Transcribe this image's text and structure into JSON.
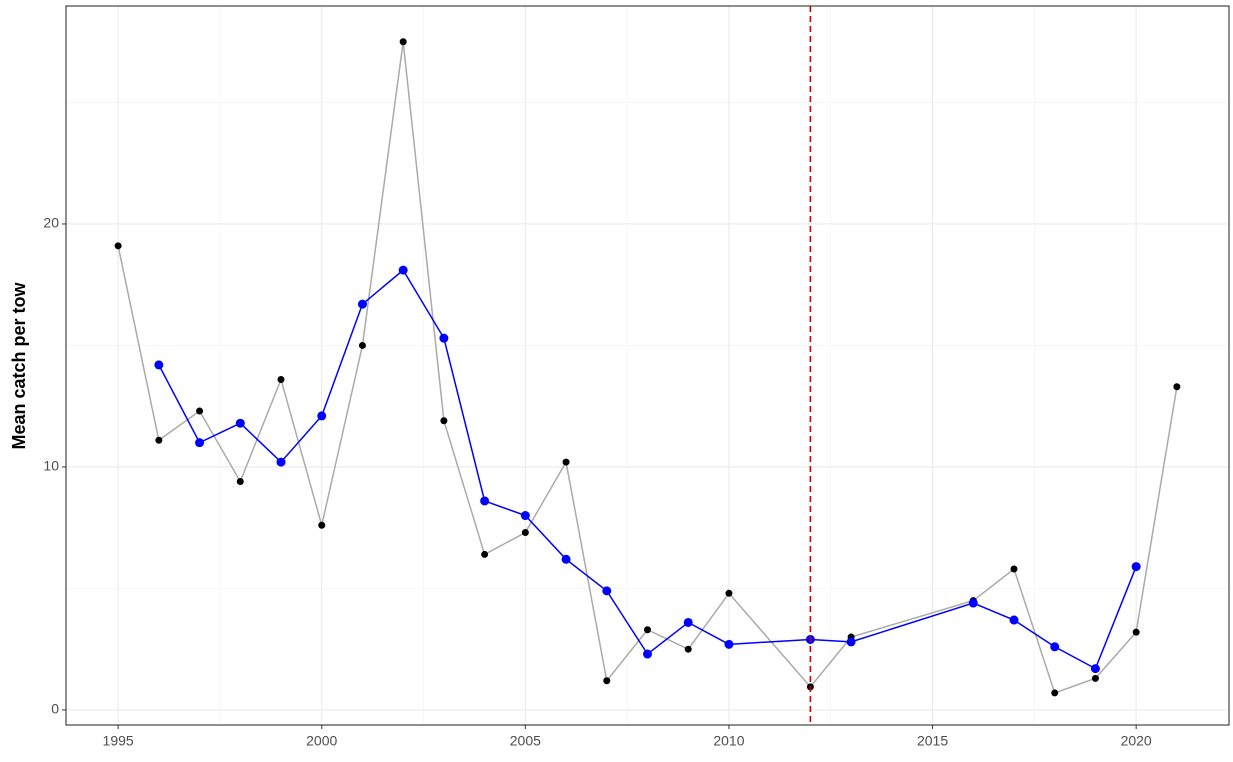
{
  "chart_data": {
    "type": "line",
    "y_label": "Mean catch per tow",
    "xlim": [
      1993.72,
      2022.28
    ],
    "ylim": [
      -0.62,
      28.97
    ],
    "xticks": [
      1995,
      2000,
      2005,
      2010,
      2015,
      2020
    ],
    "yticks": [
      0,
      10,
      20
    ],
    "minor_xticks": [
      1997.5,
      2002.5,
      2007.5,
      2012.5,
      2017.5
    ],
    "minor_yticks": [
      5,
      15,
      25
    ],
    "grid": true,
    "vline": {
      "x": 2012,
      "color": "#cc0000"
    },
    "series": [
      {
        "color": "#000000",
        "line_color": "#aaaaaa",
        "x": [
          1995,
          1996,
          1997,
          1998,
          1999,
          2000,
          2001,
          2002,
          2003,
          2004,
          2005,
          2006,
          2007,
          2008,
          2009,
          2010,
          2012,
          2013,
          2016,
          2017,
          2018,
          2019,
          2020,
          2021
        ],
        "values": [
          19.1,
          11.1,
          12.3,
          9.4,
          13.6,
          7.6,
          15.0,
          27.5,
          11.9,
          6.4,
          7.3,
          10.2,
          1.2,
          3.3,
          2.5,
          4.8,
          0.95,
          3.0,
          4.5,
          5.8,
          0.7,
          1.3,
          3.2,
          13.3
        ]
      },
      {
        "color": "#0000ff",
        "line_color": "#0000ff",
        "x": [
          1996,
          1997,
          1998,
          1999,
          2000,
          2001,
          2002,
          2003,
          2004,
          2005,
          2006,
          2007,
          2008,
          2009,
          2010,
          2012,
          2013,
          2016,
          2017,
          2018,
          2019,
          2020
        ],
        "values": [
          14.2,
          11.0,
          11.8,
          10.2,
          12.1,
          16.7,
          18.1,
          15.3,
          8.6,
          8.0,
          6.2,
          4.9,
          2.3,
          3.6,
          2.7,
          2.9,
          2.8,
          4.4,
          3.7,
          2.6,
          1.7,
          5.9
        ]
      }
    ]
  }
}
